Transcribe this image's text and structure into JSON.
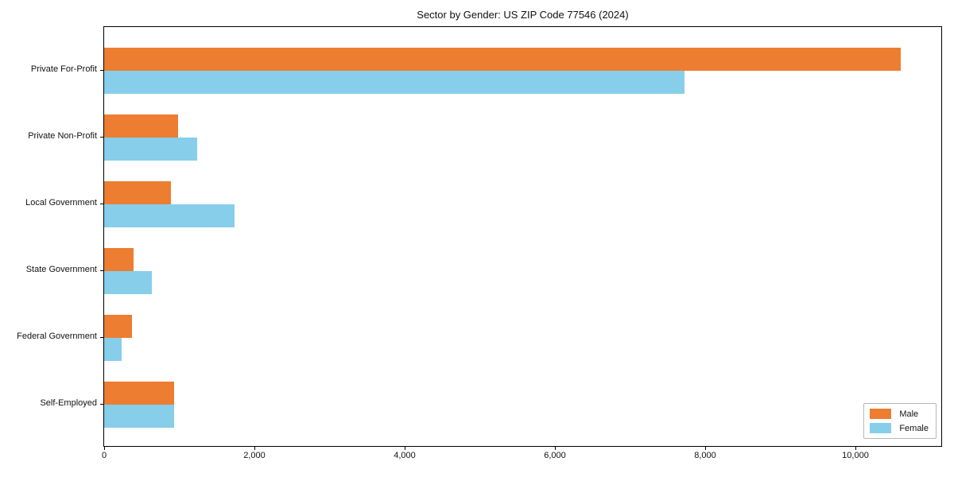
{
  "chart_data": {
    "type": "bar",
    "orientation": "horizontal",
    "title": "Sector by Gender: US ZIP Code 77546 (2024)",
    "categories": [
      "Private For-Profit",
      "Private Non-Profit",
      "Local Government",
      "State Government",
      "Federal Government",
      "Self-Employed"
    ],
    "series": [
      {
        "name": "Male",
        "color": "#ED7D31",
        "values": [
          10600,
          980,
          890,
          390,
          370,
          930
        ]
      },
      {
        "name": "Female",
        "color": "#87CEEB",
        "values": [
          7720,
          1240,
          1730,
          640,
          230,
          935
        ]
      }
    ],
    "xlabel": "",
    "ylabel": "",
    "xlim": [
      0,
      11140
    ],
    "xticks": [
      {
        "value": 0,
        "label": "0"
      },
      {
        "value": 2000,
        "label": "2,000"
      },
      {
        "value": 4000,
        "label": "4,000"
      },
      {
        "value": 6000,
        "label": "6,000"
      },
      {
        "value": 8000,
        "label": "8,000"
      },
      {
        "value": 10000,
        "label": "10,000"
      }
    ],
    "grid": false,
    "legend_position": "lower right"
  }
}
